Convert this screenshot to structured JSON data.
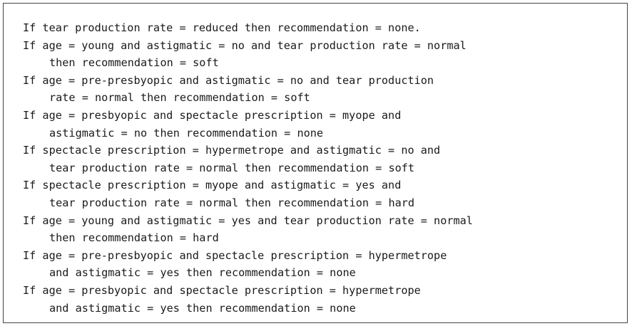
{
  "rules": [
    {
      "lines": [
        "If tear production rate = reduced then recommendation = none."
      ]
    },
    {
      "lines": [
        "If age = young and astigmatic = no and tear production rate = normal",
        "then recommendation = soft"
      ]
    },
    {
      "lines": [
        "If age = pre-presbyopic and astigmatic = no and tear production",
        "rate = normal then recommendation = soft"
      ]
    },
    {
      "lines": [
        "If age = presbyopic and spectacle prescription = myope and",
        "astigmatic = no then recommendation = none"
      ]
    },
    {
      "lines": [
        "If spectacle prescription = hypermetrope and astigmatic = no and",
        "tear production rate = normal then recommendation = soft"
      ]
    },
    {
      "lines": [
        "If spectacle prescription = myope and astigmatic = yes and",
        "tear production rate = normal then recommendation = hard"
      ]
    },
    {
      "lines": [
        "If age = young and astigmatic = yes and tear production rate = normal",
        "then recommendation = hard"
      ]
    },
    {
      "lines": [
        "If age = pre-presbyopic and spectacle prescription = hypermetrope",
        "and astigmatic = yes then recommendation = none"
      ]
    },
    {
      "lines": [
        "If age = presbyopic and spectacle prescription = hypermetrope",
        "and astigmatic = yes then recommendation = none"
      ]
    }
  ]
}
